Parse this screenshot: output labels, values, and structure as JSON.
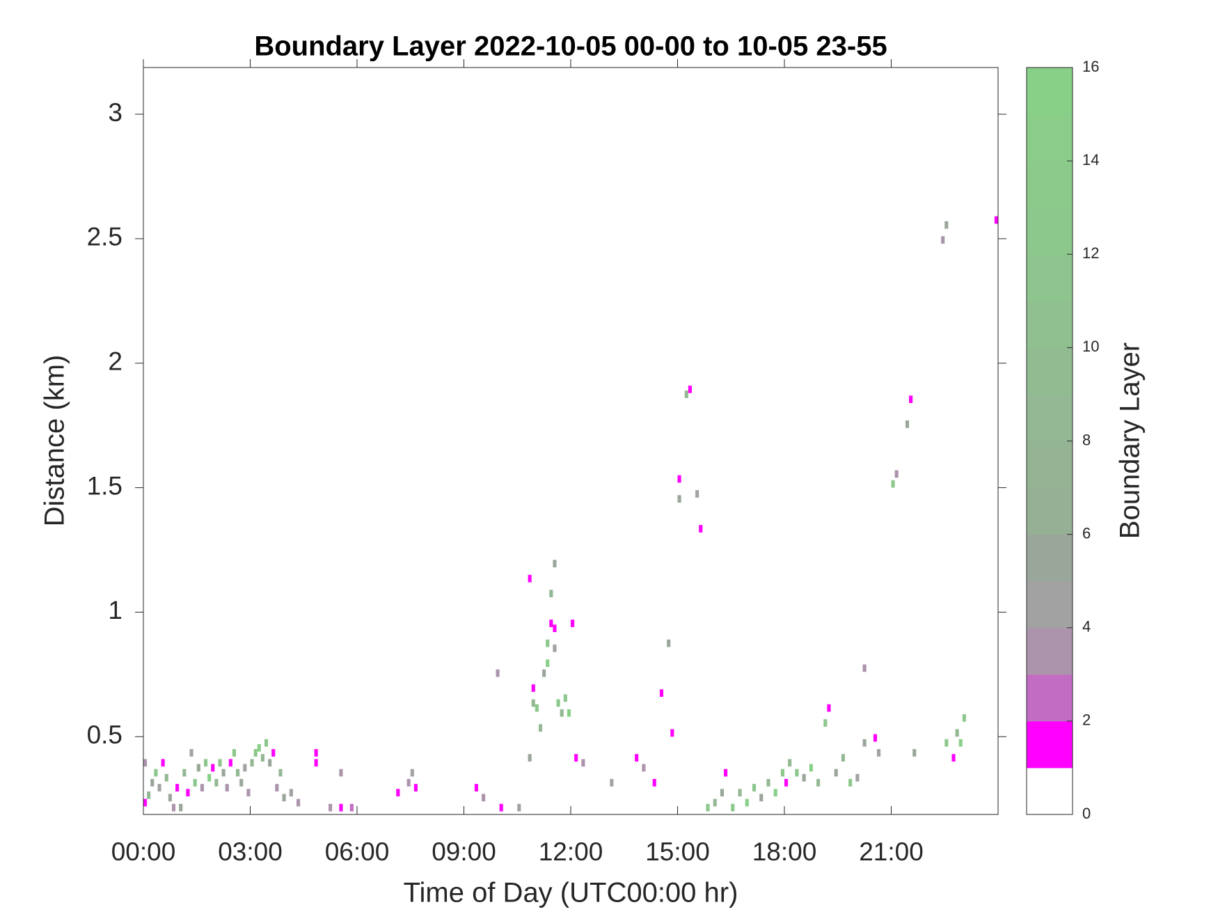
{
  "chart_data": {
    "type": "heatmap",
    "title": "Boundary Layer 2022-10-05 00-00 to 10-05 23-55",
    "xlabel": "Time of Day (UTC00:00 hr)",
    "ylabel": "Distance (km)",
    "colorbar_label": "Boundary Layer",
    "xlim": [
      0,
      24
    ],
    "xticks": [
      {
        "value": 0,
        "label": "00:00"
      },
      {
        "value": 3,
        "label": "03:00"
      },
      {
        "value": 6,
        "label": "06:00"
      },
      {
        "value": 9,
        "label": "09:00"
      },
      {
        "value": 12,
        "label": "12:00"
      },
      {
        "value": 15,
        "label": "15:00"
      },
      {
        "value": 18,
        "label": "18:00"
      },
      {
        "value": 21,
        "label": "21:00"
      }
    ],
    "ylim": [
      0.1875,
      3.1875
    ],
    "yticks": [
      0.5,
      1,
      1.5,
      2,
      2.5,
      3
    ],
    "clim": [
      0,
      16
    ],
    "cticks": [
      0,
      2,
      4,
      6,
      8,
      10,
      12,
      14,
      16
    ],
    "colormap": [
      "#ffffff",
      "#ff00ff",
      "#c36cc3",
      "#ac94ac",
      "#a2a2a2",
      "#9aa69a",
      "#96b096",
      "#94b494",
      "#93b893",
      "#91bc91",
      "#90c090",
      "#8ec48e",
      "#8cc78c",
      "#8bca8b",
      "#89cd89",
      "#88d088"
    ],
    "cells": [
      [
        0.0,
        0.22,
        1
      ],
      [
        0.0,
        0.38,
        3
      ],
      [
        0.1,
        0.25,
        8
      ],
      [
        0.2,
        0.3,
        5
      ],
      [
        0.3,
        0.34,
        12
      ],
      [
        0.4,
        0.28,
        4
      ],
      [
        0.5,
        0.38,
        1
      ],
      [
        0.6,
        0.32,
        8
      ],
      [
        0.7,
        0.24,
        5
      ],
      [
        0.8,
        0.2,
        3
      ],
      [
        0.9,
        0.28,
        1
      ],
      [
        1.0,
        0.2,
        5
      ],
      [
        1.1,
        0.34,
        8
      ],
      [
        1.2,
        0.26,
        1
      ],
      [
        1.3,
        0.42,
        4
      ],
      [
        1.4,
        0.3,
        12
      ],
      [
        1.5,
        0.36,
        5
      ],
      [
        1.6,
        0.28,
        3
      ],
      [
        1.7,
        0.38,
        12
      ],
      [
        1.8,
        0.32,
        15
      ],
      [
        1.9,
        0.36,
        1
      ],
      [
        2.0,
        0.3,
        8
      ],
      [
        2.1,
        0.38,
        12
      ],
      [
        2.2,
        0.34,
        5
      ],
      [
        2.3,
        0.28,
        3
      ],
      [
        2.4,
        0.38,
        1
      ],
      [
        2.5,
        0.42,
        12
      ],
      [
        2.6,
        0.34,
        8
      ],
      [
        2.7,
        0.3,
        5
      ],
      [
        2.8,
        0.36,
        4
      ],
      [
        2.9,
        0.26,
        3
      ],
      [
        3.0,
        0.38,
        8
      ],
      [
        3.1,
        0.42,
        12
      ],
      [
        3.2,
        0.44,
        15
      ],
      [
        3.3,
        0.4,
        8
      ],
      [
        3.4,
        0.46,
        12
      ],
      [
        3.5,
        0.38,
        5
      ],
      [
        3.6,
        0.42,
        1
      ],
      [
        3.7,
        0.28,
        3
      ],
      [
        3.8,
        0.34,
        8
      ],
      [
        3.9,
        0.24,
        5
      ],
      [
        4.1,
        0.26,
        4
      ],
      [
        4.3,
        0.22,
        3
      ],
      [
        4.8,
        0.42,
        1
      ],
      [
        4.8,
        0.38,
        1
      ],
      [
        5.2,
        0.2,
        3
      ],
      [
        5.5,
        0.2,
        1
      ],
      [
        5.5,
        0.34,
        3
      ],
      [
        5.8,
        0.2,
        2
      ],
      [
        7.1,
        0.26,
        1
      ],
      [
        7.4,
        0.3,
        3
      ],
      [
        7.5,
        0.34,
        4
      ],
      [
        7.6,
        0.28,
        1
      ],
      [
        9.3,
        0.28,
        1
      ],
      [
        9.5,
        0.24,
        3
      ],
      [
        9.9,
        0.74,
        3
      ],
      [
        10.0,
        0.2,
        1
      ],
      [
        10.5,
        0.2,
        4
      ],
      [
        10.8,
        1.12,
        1
      ],
      [
        10.8,
        0.4,
        5
      ],
      [
        10.9,
        0.68,
        1
      ],
      [
        10.9,
        0.62,
        8
      ],
      [
        11.0,
        0.6,
        12
      ],
      [
        11.1,
        0.52,
        8
      ],
      [
        11.2,
        0.74,
        5
      ],
      [
        11.3,
        0.86,
        12
      ],
      [
        11.3,
        0.78,
        15
      ],
      [
        11.4,
        1.06,
        8
      ],
      [
        11.4,
        0.94,
        1
      ],
      [
        11.5,
        1.18,
        5
      ],
      [
        11.5,
        0.92,
        1
      ],
      [
        11.5,
        0.84,
        4
      ],
      [
        11.6,
        0.62,
        12
      ],
      [
        11.7,
        0.58,
        8
      ],
      [
        11.8,
        0.64,
        12
      ],
      [
        11.9,
        0.58,
        15
      ],
      [
        12.0,
        0.94,
        1
      ],
      [
        12.1,
        0.4,
        1
      ],
      [
        12.3,
        0.38,
        3
      ],
      [
        13.1,
        0.3,
        4
      ],
      [
        13.8,
        0.4,
        1
      ],
      [
        14.0,
        0.36,
        3
      ],
      [
        14.3,
        0.3,
        1
      ],
      [
        14.5,
        0.66,
        1
      ],
      [
        14.7,
        0.86,
        5
      ],
      [
        14.8,
        0.5,
        1
      ],
      [
        15.0,
        1.44,
        5
      ],
      [
        15.0,
        1.52,
        1
      ],
      [
        15.2,
        1.86,
        8
      ],
      [
        15.3,
        1.88,
        1
      ],
      [
        15.5,
        1.46,
        4
      ],
      [
        15.6,
        1.32,
        1
      ],
      [
        15.8,
        0.2,
        12
      ],
      [
        16.0,
        0.22,
        8
      ],
      [
        16.2,
        0.26,
        5
      ],
      [
        16.3,
        0.34,
        1
      ],
      [
        16.5,
        0.2,
        12
      ],
      [
        16.7,
        0.26,
        8
      ],
      [
        16.9,
        0.22,
        15
      ],
      [
        17.1,
        0.28,
        12
      ],
      [
        17.3,
        0.24,
        5
      ],
      [
        17.5,
        0.3,
        8
      ],
      [
        17.7,
        0.26,
        15
      ],
      [
        17.9,
        0.34,
        12
      ],
      [
        18.0,
        0.3,
        1
      ],
      [
        18.1,
        0.38,
        8
      ],
      [
        18.3,
        0.34,
        12
      ],
      [
        18.5,
        0.32,
        5
      ],
      [
        18.7,
        0.36,
        15
      ],
      [
        18.9,
        0.3,
        8
      ],
      [
        19.1,
        0.54,
        12
      ],
      [
        19.2,
        0.6,
        1
      ],
      [
        19.4,
        0.34,
        5
      ],
      [
        19.6,
        0.4,
        8
      ],
      [
        19.8,
        0.3,
        12
      ],
      [
        20.0,
        0.32,
        4
      ],
      [
        20.2,
        0.76,
        3
      ],
      [
        20.2,
        0.46,
        5
      ],
      [
        20.5,
        0.48,
        1
      ],
      [
        20.6,
        0.42,
        4
      ],
      [
        21.0,
        1.5,
        12
      ],
      [
        21.1,
        1.54,
        3
      ],
      [
        21.4,
        1.74,
        5
      ],
      [
        21.5,
        1.84,
        1
      ],
      [
        21.6,
        0.42,
        5
      ],
      [
        22.4,
        2.48,
        3
      ],
      [
        22.5,
        2.54,
        5
      ],
      [
        22.5,
        0.46,
        12
      ],
      [
        22.7,
        0.4,
        1
      ],
      [
        22.8,
        0.5,
        8
      ],
      [
        22.9,
        0.46,
        15
      ],
      [
        23.0,
        0.56,
        12
      ],
      [
        23.9,
        2.56,
        1
      ]
    ]
  }
}
